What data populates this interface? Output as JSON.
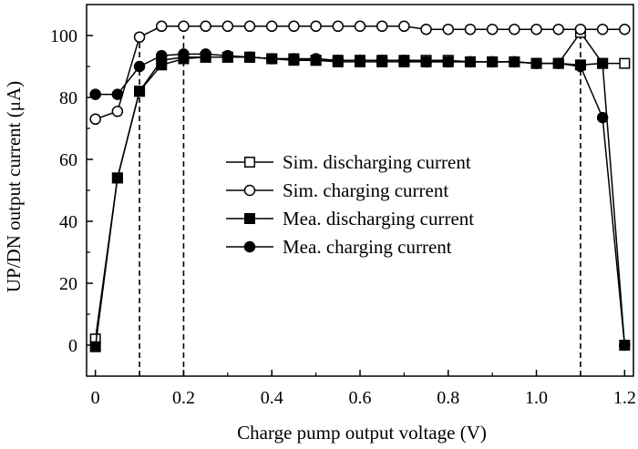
{
  "chart_data": {
    "type": "line",
    "xlabel": "Charge pump output voltage (V)",
    "ylabel": "UP/DN output current (μA)",
    "xlim": [
      -0.02,
      1.22
    ],
    "ylim": [
      -10,
      110
    ],
    "xticks": [
      "0",
      "0.2",
      "0.4",
      "0.6",
      "0.8",
      "1.0",
      "1.2"
    ],
    "yticks": [
      "0",
      "20",
      "40",
      "60",
      "80",
      "100"
    ],
    "grid": false,
    "legend_position": "center",
    "reference_lines_x": [
      0.1,
      0.2,
      1.1
    ],
    "x": [
      0,
      0.05,
      0.1,
      0.15,
      0.2,
      0.25,
      0.3,
      0.35,
      0.4,
      0.45,
      0.5,
      0.55,
      0.6,
      0.65,
      0.7,
      0.75,
      0.8,
      0.85,
      0.9,
      0.95,
      1.0,
      1.05,
      1.1,
      1.15,
      1.2
    ],
    "series": [
      {
        "name": "Sim. discharging current",
        "marker": "open-square",
        "values": [
          2,
          54,
          82,
          92,
          93,
          93,
          93,
          93,
          92.5,
          92.5,
          92,
          92,
          92,
          92,
          92,
          92,
          92,
          91.5,
          91.5,
          91.5,
          91,
          91,
          101,
          91,
          91
        ]
      },
      {
        "name": "Sim. charging current",
        "marker": "open-circle",
        "values": [
          73,
          75.5,
          99.5,
          103,
          103,
          103,
          103,
          103,
          103,
          103,
          103,
          103,
          103,
          103,
          103,
          102,
          102,
          102,
          102,
          102,
          102,
          102,
          102,
          102,
          102
        ]
      },
      {
        "name": "Mea. discharging current",
        "marker": "filled-square",
        "values": [
          -0.5,
          54,
          82,
          90.5,
          92.5,
          93,
          93,
          93,
          92.5,
          92,
          92,
          91.5,
          91.5,
          91.5,
          91.5,
          91.5,
          91.5,
          91.5,
          91.5,
          91.5,
          91,
          91,
          90.5,
          91,
          0
        ]
      },
      {
        "name": "Mea. charging current",
        "marker": "filled-circle",
        "values": [
          81,
          81,
          90,
          93.5,
          94,
          94,
          93.5,
          93,
          92.5,
          92.5,
          92.5,
          92,
          92,
          92,
          92,
          91.5,
          91.5,
          91.5,
          91.5,
          91.5,
          91,
          91,
          90,
          73.5,
          0
        ]
      }
    ]
  }
}
